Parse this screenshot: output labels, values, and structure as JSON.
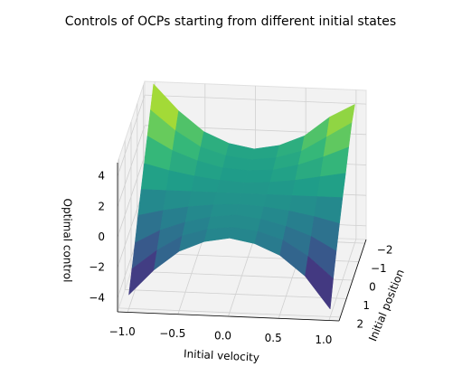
{
  "chart_data": {
    "type": "surface",
    "title": "Controls of OCPs starting from different initial states",
    "xlabel": "Initial velocity",
    "ylabel": "Initial position",
    "zlabel": "Optimal control",
    "colormap": "viridis",
    "xlim": [
      -1.1,
      1.1
    ],
    "ylim": [
      -2.2,
      2.2
    ],
    "zlim": [
      -4.9,
      4.9
    ],
    "xticks": [
      {
        "value": -1,
        "label": "−1.0"
      },
      {
        "value": -0.5,
        "label": "−0.5"
      },
      {
        "value": 0,
        "label": "0.0"
      },
      {
        "value": 0.5,
        "label": "0.5"
      },
      {
        "value": 1,
        "label": "1.0"
      }
    ],
    "yticks": [
      {
        "value": -2,
        "label": "−2"
      },
      {
        "value": -1,
        "label": "−1"
      },
      0,
      1,
      2
    ],
    "zticks": [
      {
        "value": -4,
        "label": "−4"
      },
      {
        "value": -2,
        "label": "−2"
      },
      0,
      2,
      4
    ],
    "x": [
      -1,
      -0.75,
      -0.5,
      -0.25,
      0,
      0.25,
      0.5,
      0.75,
      1
    ],
    "y": [
      -2,
      -1.5,
      -1,
      -0.5,
      0,
      0.5,
      1,
      1.5,
      2
    ],
    "z": [
      [
        5.0,
        3.3,
        2.0,
        1.3,
        1.0,
        1.3,
        2.0,
        3.3,
        4.2
      ],
      [
        3.9,
        2.6,
        1.6,
        1.1,
        0.9,
        1.1,
        1.6,
        2.6,
        3.6
      ],
      [
        2.8,
        1.9,
        1.3,
        0.9,
        0.8,
        0.9,
        1.3,
        1.9,
        2.6
      ],
      [
        1.6,
        1.2,
        0.9,
        0.7,
        0.6,
        0.7,
        0.9,
        1.2,
        1.5
      ],
      [
        0.5,
        0.5,
        0.5,
        0.5,
        0.5,
        0.5,
        0.5,
        0.5,
        0.5
      ],
      [
        -0.6,
        -0.2,
        0.1,
        0.3,
        0.4,
        0.3,
        0.1,
        -0.2,
        -0.6
      ],
      [
        -1.8,
        -0.9,
        -0.3,
        0.1,
        0.3,
        0.1,
        -0.3,
        -0.9,
        -1.8
      ],
      [
        -2.9,
        -1.6,
        -0.6,
        -0.1,
        0.1,
        -0.1,
        -0.6,
        -1.6,
        -3.0
      ],
      [
        -4.0,
        -2.3,
        -1.0,
        -0.3,
        0.0,
        -0.3,
        -1.0,
        -2.3,
        -4.4
      ]
    ]
  }
}
